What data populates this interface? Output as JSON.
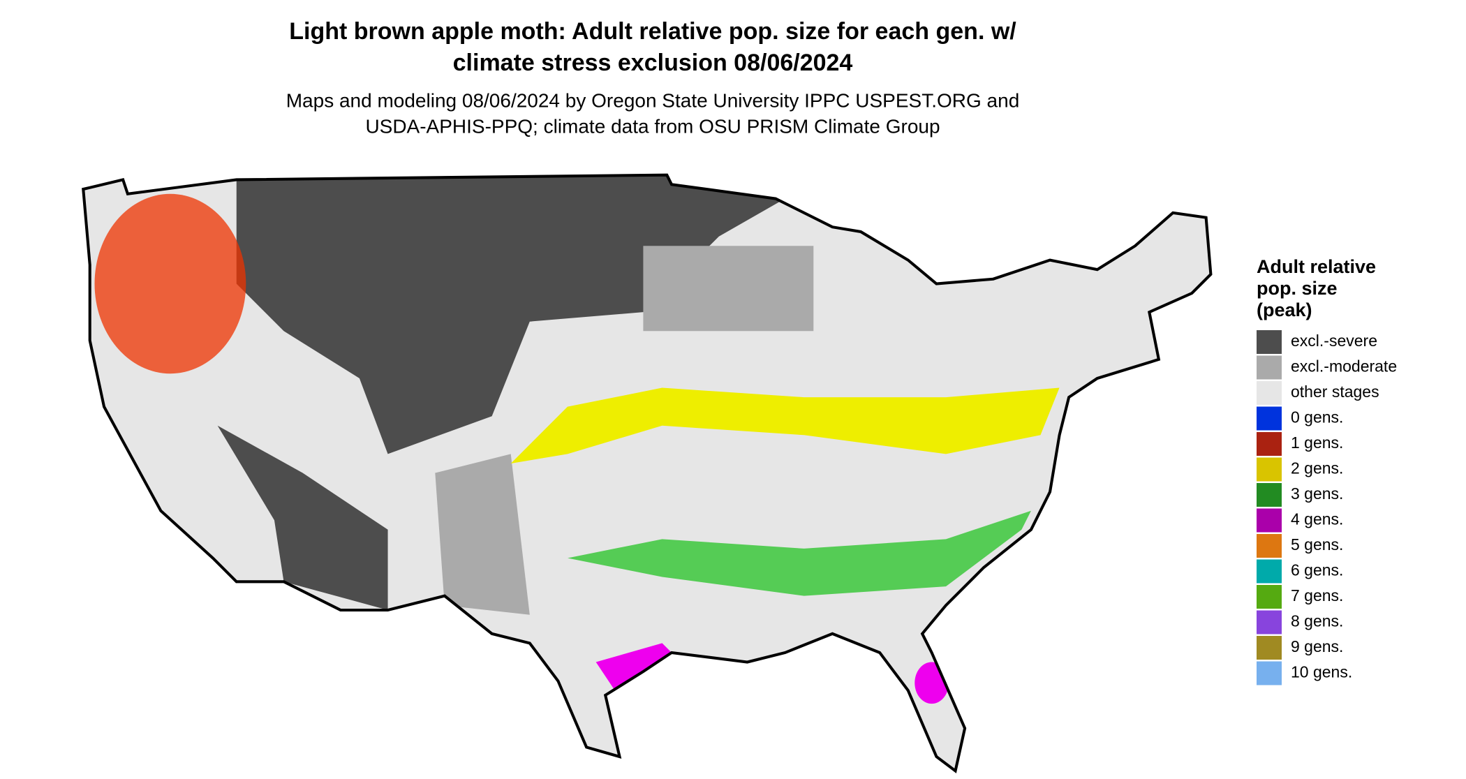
{
  "title": [
    "Light brown apple moth: Adult relative pop. size for each gen. w/",
    "climate stress exclusion 08/06/2024"
  ],
  "subtitle": [
    "Maps and modeling 08/06/2024 by Oregon State University IPPC USPEST.ORG and",
    "USDA-APHIS-PPQ; climate data from OSU PRISM Climate Group"
  ],
  "legend": {
    "title": [
      "Adult relative",
      "pop. size",
      "(peak)"
    ],
    "items": [
      {
        "name": "excl.-severe",
        "color": "#4d4d4d"
      },
      {
        "name": "excl.-moderate",
        "color": "#aaaaaa"
      },
      {
        "name": "other stages",
        "color": "#e6e6e6"
      },
      {
        "name": "0 gens.",
        "color": "#0033dd"
      },
      {
        "name": "1 gens.",
        "color": "#aa2211"
      },
      {
        "name": "2 gens.",
        "color": "#d9c400"
      },
      {
        "name": "3 gens.",
        "color": "#228b22"
      },
      {
        "name": "4 gens.",
        "color": "#aa00aa"
      },
      {
        "name": "5 gens.",
        "color": "#dd7711"
      },
      {
        "name": "6 gens.",
        "color": "#00aaaa"
      },
      {
        "name": "7 gens.",
        "color": "#55aa11"
      },
      {
        "name": "8 gens.",
        "color": "#8844dd"
      },
      {
        "name": "9 gens.",
        "color": "#a08a22"
      },
      {
        "name": "10 gens.",
        "color": "#77b0ee"
      }
    ]
  }
}
